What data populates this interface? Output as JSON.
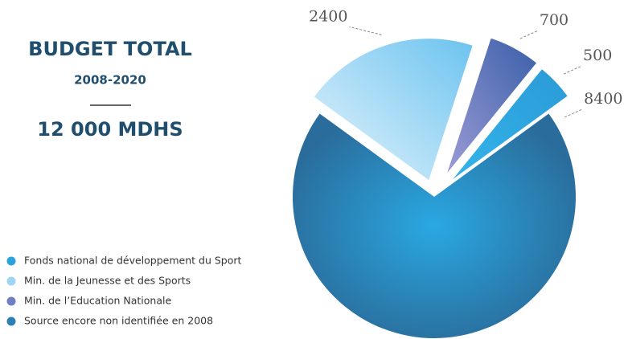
{
  "chart_data": {
    "type": "pie",
    "title": "BUDGET TOTAL",
    "subtitle": "2008-2020",
    "total_label": "12 000  MDHS",
    "categories": [
      "Fonds national de développement du Sport",
      "Min. de la Jeunesse et des Sports",
      "Min. de l’Education Nationale",
      "Source encore non identifiée en 2008"
    ],
    "values": [
      500,
      2400,
      700,
      8400
    ],
    "colors": [
      "#2aa3dc",
      "#9fd4f2",
      "#6f7fc4",
      "#2c7fb5"
    ],
    "legend": "bottom-left"
  }
}
